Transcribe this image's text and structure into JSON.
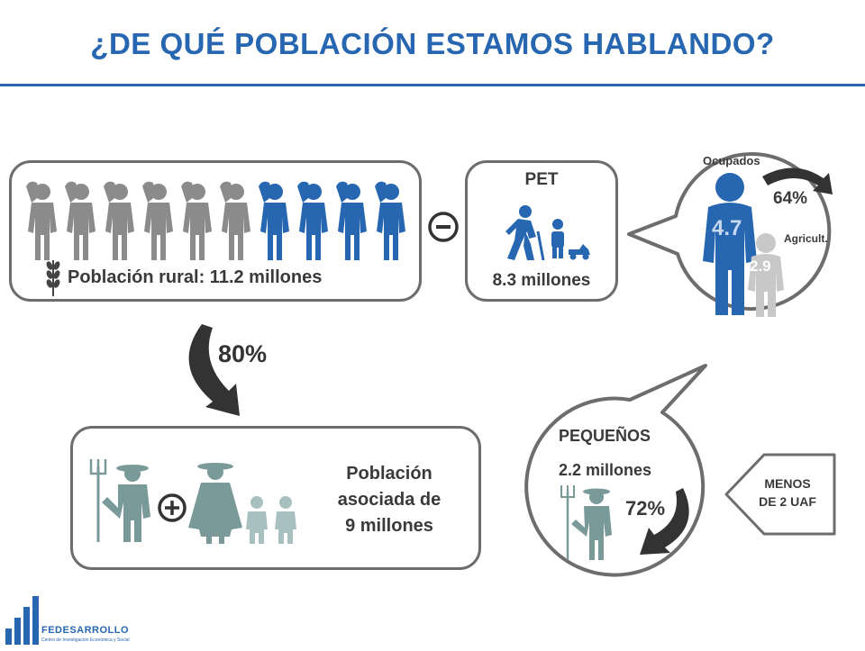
{
  "title": "¿DE QUÉ POBLACIÓN ESTAMOS HABLANDO?",
  "rural": {
    "label": "Población rural: 11.2 millones",
    "total_figures": 10,
    "blue_figures": 4
  },
  "pet": {
    "title": "PET",
    "value": "8.3 millones"
  },
  "ocupados": {
    "title": "Ocupados",
    "percent": "64%",
    "big_value": "4.7",
    "small_value": "2.9",
    "agri_label": "Agricult."
  },
  "arrow_percent": "80%",
  "asociada": {
    "line1": "Población",
    "line2": "asociada de",
    "line3": "9 millones"
  },
  "pequenos": {
    "title": "PEQUEÑOS",
    "value": "2.2 millones",
    "percent": "72%"
  },
  "menos": {
    "line1": "MENOS",
    "line2": "DE 2 UAF"
  },
  "logo": {
    "name": "FEDESARROLLO",
    "tagline": "Centro de Investigación Económica y Social"
  },
  "colors": {
    "blue": "#2766b0",
    "gray": "#8b8b8b",
    "teal": "#7a9a9a",
    "light_teal": "#a8c0c0",
    "border": "#6d6d6d"
  }
}
